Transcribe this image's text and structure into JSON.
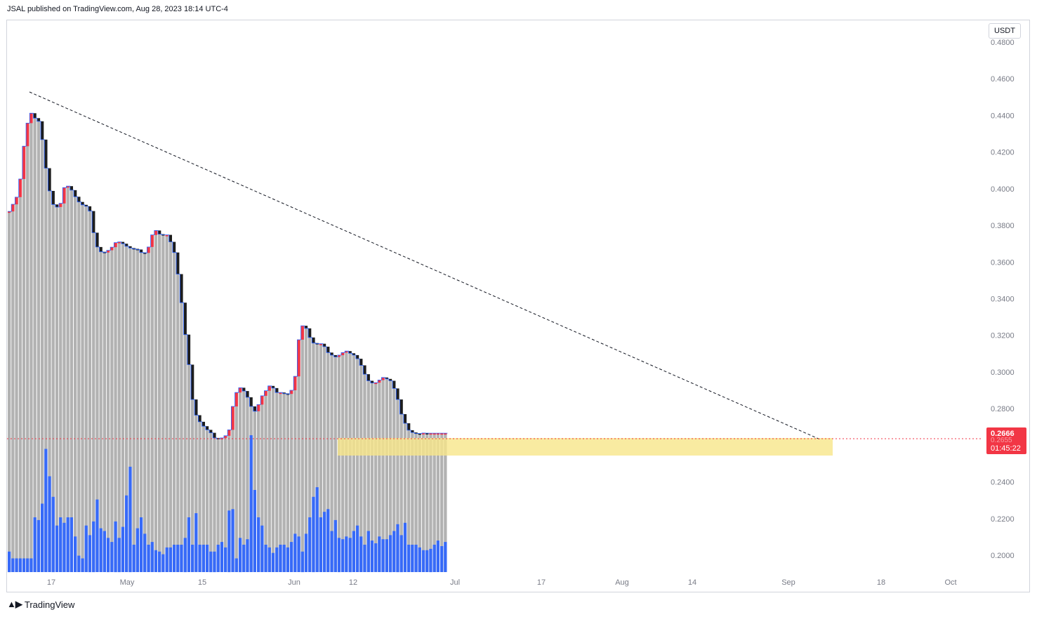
{
  "header": {
    "published": "JSAL published on TradingView.com, Aug 28, 2023 18:14 UTC-4"
  },
  "currency": "USDT",
  "last_price": {
    "price": "0.2666",
    "prev": "0.2655",
    "countdown": "01:45:22"
  },
  "footer": {
    "brand": "TradingView",
    "logo_icon": "tradingview-logo-icon"
  },
  "colors": {
    "up_bar": "#b2b2b2",
    "down_bar": "#1e1e1e",
    "red_candle": "#f23645",
    "volume": "#2962ff",
    "highlight": "#f7e68a",
    "price_line": "#f23645"
  },
  "chart_data": {
    "type": "bar",
    "title": "",
    "xlabel": "",
    "ylabel": "",
    "ylim": [
      0.19,
      0.48
    ],
    "y_ticks": [
      "0.4800",
      "0.4600",
      "0.4400",
      "0.4200",
      "0.4000",
      "0.3800",
      "0.3600",
      "0.3400",
      "0.3200",
      "0.3000",
      "0.2800",
      "0.2600",
      "0.2400",
      "0.2200",
      "0.2000"
    ],
    "x_ticks": [
      "17",
      "May",
      "15",
      "Jun",
      "12",
      "Jul",
      "17",
      "Aug",
      "14",
      "Sep",
      "18",
      "Oct"
    ],
    "closes": [
      0.3876,
      0.3915,
      0.3954,
      0.4053,
      0.4232,
      0.4358,
      0.4412,
      0.4385,
      0.4368,
      0.4268,
      0.4112,
      0.3988,
      0.3914,
      0.39,
      0.392,
      0.4006,
      0.4014,
      0.3992,
      0.3956,
      0.3928,
      0.3912,
      0.3904,
      0.3878,
      0.376,
      0.3682,
      0.3656,
      0.3652,
      0.3664,
      0.3681,
      0.3706,
      0.371,
      0.37,
      0.3686,
      0.3676,
      0.3672,
      0.3668,
      0.3652,
      0.365,
      0.3682,
      0.3748,
      0.3772,
      0.3752,
      0.3748,
      0.3748,
      0.371,
      0.3652,
      0.3534,
      0.3378,
      0.3204,
      0.304,
      0.285,
      0.2764,
      0.2728,
      0.2704,
      0.2684,
      0.2668,
      0.264,
      0.2636,
      0.264,
      0.2652,
      0.2684,
      0.2812,
      0.2888,
      0.2914,
      0.2896,
      0.2862,
      0.2812,
      0.2786,
      0.2822,
      0.287,
      0.2898,
      0.2924,
      0.2912,
      0.2888,
      0.2888,
      0.2883,
      0.288,
      0.29,
      0.2976,
      0.3176,
      0.3252,
      0.3238,
      0.3188,
      0.3158,
      0.3154,
      0.3154,
      0.3138,
      0.3106,
      0.3092,
      0.3082,
      0.3092,
      0.3106,
      0.3114,
      0.3102,
      0.3092,
      0.3072,
      0.3036,
      0.2988,
      0.2952,
      0.294,
      0.2942,
      0.2956,
      0.297,
      0.2962,
      0.2952,
      0.291,
      0.285,
      0.277,
      0.272,
      0.2682,
      0.267,
      0.2665,
      0.2664,
      0.2667,
      0.2666,
      0.2666,
      0.2666,
      0.2666,
      0.2666,
      0.2666
    ],
    "volume_levels": [
      0.15,
      0.1,
      0.1,
      0.1,
      0.1,
      0.1,
      0.1,
      0.4,
      0.38,
      0.5,
      0.9,
      0.7,
      0.55,
      0.34,
      0.4,
      0.36,
      0.4,
      0.4,
      0.26,
      0.12,
      0.1,
      0.34,
      0.27,
      0.37,
      0.53,
      0.32,
      0.3,
      0.25,
      0.22,
      0.37,
      0.25,
      0.33,
      0.56,
      0.77,
      0.2,
      0.32,
      0.4,
      0.28,
      0.2,
      0.22,
      0.16,
      0.15,
      0.13,
      0.18,
      0.18,
      0.2,
      0.2,
      0.2,
      0.25,
      0.4,
      0.2,
      0.43,
      0.2,
      0.2,
      0.2,
      0.15,
      0.15,
      0.2,
      0.22,
      0.18,
      0.45,
      0.46,
      0.1,
      0.25,
      0.2,
      0.24,
      1.0,
      0.6,
      0.4,
      0.34,
      0.2,
      0.18,
      0.14,
      0.18,
      0.2,
      0.2,
      0.18,
      0.22,
      0.28,
      0.26,
      0.15,
      0.28,
      0.4,
      0.55,
      0.62,
      0.4,
      0.44,
      0.46,
      0.3,
      0.38,
      0.25,
      0.24,
      0.26,
      0.25,
      0.3,
      0.34,
      0.26,
      0.2,
      0.3,
      0.23,
      0.21,
      0.26,
      0.24,
      0.24,
      0.27,
      0.3,
      0.35,
      0.27,
      0.36,
      0.2,
      0.2,
      0.2,
      0.18,
      0.16,
      0.16,
      0.17,
      0.2,
      0.23,
      0.19,
      0.22
    ]
  }
}
